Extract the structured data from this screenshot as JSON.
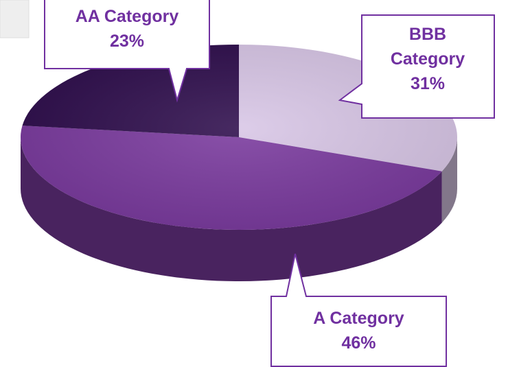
{
  "chart_data": {
    "type": "pie",
    "categories": [
      "BBB Category",
      "A Category",
      "AA Category"
    ],
    "values": [
      31,
      46,
      23
    ],
    "value_labels": [
      "31%",
      "46%",
      "23%"
    ],
    "colors": [
      "#d8c6e6",
      "#7a3a9e",
      "#2e0d4c"
    ]
  }
}
